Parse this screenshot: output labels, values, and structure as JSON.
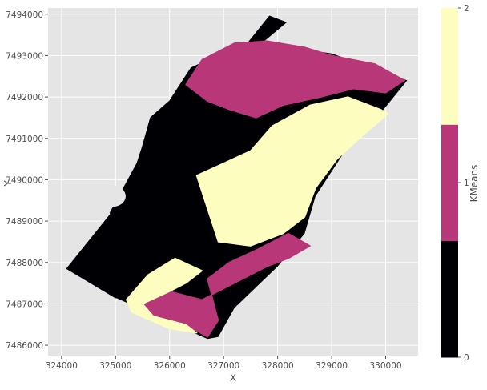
{
  "chart_data": {
    "type": "heatmap",
    "title": "",
    "xlabel": "X",
    "ylabel": "Y",
    "xlim": [
      323750,
      330600
    ],
    "ylim": [
      7485750,
      7494150
    ],
    "xticks": [
      324000,
      325000,
      326000,
      327000,
      328000,
      329000,
      330000
    ],
    "yticks": [
      7486000,
      7487000,
      7488000,
      7489000,
      7490000,
      7491000,
      7492000,
      7493000,
      7494000
    ],
    "grid": true,
    "background": "#e5e5e5",
    "colorbar": {
      "label": "KMeans",
      "ticks": [
        0,
        1,
        2
      ],
      "range": [
        0,
        2
      ],
      "classes": [
        {
          "value": 0,
          "color": "#000004"
        },
        {
          "value": 1,
          "color": "#b73779"
        },
        {
          "value": 2,
          "color": "#fcfdbf"
        }
      ]
    },
    "regions": [
      {
        "class": 0,
        "note_free": true,
        "outline": [
          [
            324100,
            7487850
          ],
          [
            327850,
            7493950
          ],
          [
            328150,
            7493800
          ],
          [
            327600,
            7493200
          ],
          [
            326900,
            7493000
          ],
          [
            326400,
            7492700
          ],
          [
            326000,
            7491900
          ],
          [
            325650,
            7491500
          ],
          [
            325500,
            7490800
          ],
          [
            325400,
            7490400
          ],
          [
            324900,
            7489200
          ],
          [
            325300,
            7488200
          ],
          [
            325100,
            7487200
          ],
          [
            325000,
            7487150
          ],
          [
            324100,
            7487850
          ]
        ]
      },
      {
        "class": 1,
        "outline": [
          [
            326300,
            7492300
          ],
          [
            326600,
            7492900
          ],
          [
            327200,
            7493300
          ],
          [
            327800,
            7493350
          ],
          [
            328500,
            7493200
          ],
          [
            329000,
            7493000
          ],
          [
            329800,
            7492800
          ],
          [
            330350,
            7492400
          ],
          [
            330000,
            7492100
          ],
          [
            329400,
            7492200
          ],
          [
            328800,
            7492000
          ],
          [
            328100,
            7491800
          ],
          [
            327600,
            7491500
          ],
          [
            327100,
            7491700
          ],
          [
            326700,
            7491900
          ],
          [
            326300,
            7492300
          ]
        ]
      },
      {
        "class": 1,
        "outline": [
          [
            325500,
            7487000
          ],
          [
            326000,
            7487300
          ],
          [
            326600,
            7487100
          ],
          [
            327200,
            7487500
          ],
          [
            327800,
            7487900
          ],
          [
            328200,
            7488100
          ],
          [
            328600,
            7488400
          ],
          [
            328200,
            7488700
          ],
          [
            327600,
            7488300
          ],
          [
            327100,
            7488000
          ],
          [
            326700,
            7487600
          ],
          [
            326900,
            7486600
          ],
          [
            326700,
            7486200
          ],
          [
            326300,
            7486500
          ],
          [
            325700,
            7486700
          ],
          [
            325500,
            7487000
          ]
        ]
      },
      {
        "class": 2,
        "outline": [
          [
            327900,
            7491300
          ],
          [
            328600,
            7491800
          ],
          [
            329300,
            7492000
          ],
          [
            329900,
            7491700
          ],
          [
            330050,
            7491600
          ],
          [
            329600,
            7491100
          ],
          [
            329100,
            7490500
          ],
          [
            328700,
            7489800
          ],
          [
            328500,
            7489100
          ],
          [
            328100,
            7488700
          ],
          [
            327500,
            7488400
          ],
          [
            326900,
            7488500
          ],
          [
            326700,
            7489300
          ],
          [
            326500,
            7490100
          ],
          [
            327000,
            7490400
          ],
          [
            327500,
            7490700
          ],
          [
            327900,
            7491300
          ]
        ]
      },
      {
        "class": 2,
        "outline": [
          [
            325200,
            7487100
          ],
          [
            325600,
            7487700
          ],
          [
            326100,
            7488100
          ],
          [
            326600,
            7487800
          ],
          [
            326300,
            7487500
          ],
          [
            326000,
            7487300
          ],
          [
            325500,
            7487000
          ],
          [
            325700,
            7486700
          ],
          [
            326300,
            7486500
          ],
          [
            326500,
            7486300
          ],
          [
            326000,
            7486400
          ],
          [
            325300,
            7486800
          ],
          [
            325200,
            7487100
          ]
        ]
      }
    ]
  }
}
